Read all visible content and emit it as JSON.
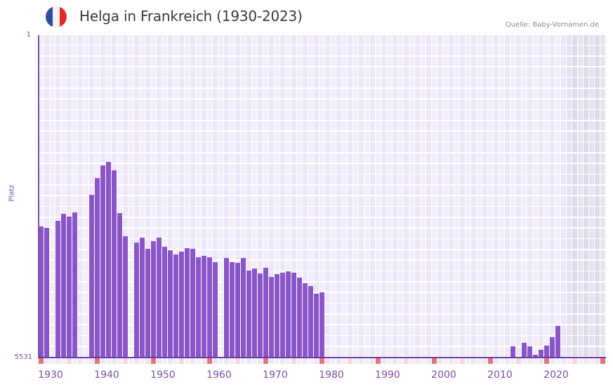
{
  "header": {
    "title": "Helga in Frankreich (1930-2023)",
    "source": "Quelle: Baby-Vornamen.de",
    "flag_icon": "france-flag-icon",
    "flag_colors": [
      "#2f4d9c",
      "#f2f2f2",
      "#e02a2a"
    ]
  },
  "axis": {
    "y_top_label": "1",
    "y_bottom_label": "5531",
    "y_title": "Platz",
    "x_labels": [
      "1930",
      "1940",
      "1950",
      "1960",
      "1970",
      "1980",
      "1990",
      "2000",
      "2010",
      "2020"
    ]
  },
  "colors": {
    "bar": "#8a55c8",
    "axis": "#7a4fa8",
    "grid_a": "#f2eefb",
    "grid_b": "#ece6f7",
    "future_a": "#e6e2ef",
    "future_b": "#dedaea",
    "decade_marker": "#e5737a",
    "half_decade_marker": "#f5d6de"
  },
  "chart_data": {
    "type": "bar",
    "title": "Helga in Frankreich (1930-2023)",
    "xlabel": "",
    "ylabel": "Platz",
    "ylim": [
      5531,
      1
    ],
    "y_inverted": true,
    "grid": true,
    "legend": null,
    "x_range": [
      1930,
      2030
    ],
    "future_shaded_from": 2024,
    "categories": [
      1930,
      1931,
      1933,
      1934,
      1935,
      1936,
      1939,
      1940,
      1941,
      1942,
      1943,
      1944,
      1945,
      1947,
      1948,
      1949,
      1950,
      1951,
      1952,
      1953,
      1954,
      1955,
      1956,
      1957,
      1958,
      1959,
      1960,
      1961,
      1963,
      1964,
      1965,
      1966,
      1967,
      1968,
      1969,
      1970,
      1971,
      1972,
      1973,
      1974,
      1975,
      1976,
      1977,
      1978,
      1979,
      1980,
      2014,
      2016,
      2017,
      2018,
      2019,
      2020,
      2021,
      2022
    ],
    "values": [
      3286,
      3310,
      3190,
      3070,
      3118,
      3046,
      2745,
      2457,
      2240,
      2180,
      2324,
      3058,
      3455,
      3563,
      3479,
      3671,
      3539,
      3479,
      3635,
      3695,
      3767,
      3719,
      3659,
      3671,
      3815,
      3791,
      3815,
      3899,
      3827,
      3899,
      3911,
      3827,
      4043,
      4007,
      4091,
      3995,
      4152,
      4104,
      4079,
      4055,
      4079,
      4164,
      4260,
      4308,
      4440,
      4416,
      5339,
      5279,
      5339,
      5483,
      5399,
      5327,
      5183,
      4992
    ]
  }
}
